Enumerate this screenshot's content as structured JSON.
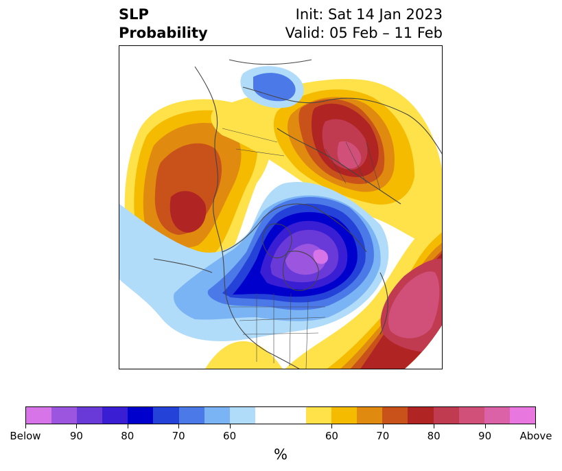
{
  "title": {
    "left": [
      "SLP",
      "Probability"
    ],
    "right": [
      "Init: Sat 14 Jan 2023",
      "Valid: 05 Feb – 11 Feb"
    ]
  },
  "colorbar": {
    "below_colors": [
      "#d674e8",
      "#9b55de",
      "#6a3ad8",
      "#3a1ed4",
      "#0000cc",
      "#2442d8",
      "#4c79e8",
      "#7ab4f4",
      "#b0dcfa"
    ],
    "neutral_color": "#ffffff",
    "above_colors": [
      "#ffe24a",
      "#f5bb00",
      "#e08a10",
      "#c8521a",
      "#b02424",
      "#c03a50",
      "#d0507a",
      "#dc62a8",
      "#e878e0"
    ],
    "tick_labels": [
      "Below",
      "90",
      "80",
      "70",
      "60",
      "60",
      "70",
      "80",
      "90",
      "Above"
    ],
    "unit": "%"
  }
}
